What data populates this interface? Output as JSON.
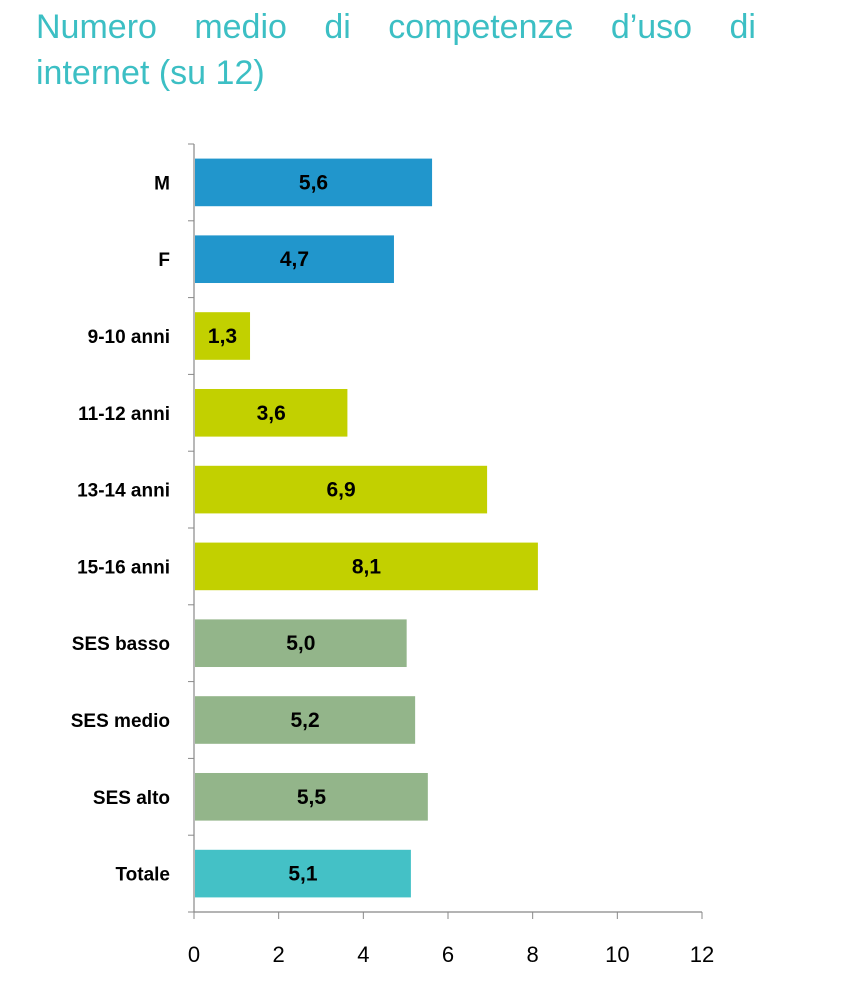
{
  "title_words": [
    "Numero",
    "medio",
    "di",
    "competenze",
    "d’uso",
    "di"
  ],
  "title_line2": "internet (su 12)",
  "chart_data": {
    "type": "bar",
    "orientation": "horizontal",
    "title": "Numero medio di competenze d’uso di internet (su 12)",
    "categories": [
      "M",
      "F",
      "9-10 anni",
      "11-12 anni",
      "13-14 anni",
      "15-16 anni",
      "SES basso",
      "SES medio",
      "SES alto",
      "Totale"
    ],
    "values": [
      5.6,
      4.7,
      1.3,
      3.6,
      6.9,
      8.1,
      5.0,
      5.2,
      5.5,
      5.1
    ],
    "value_labels": [
      "5,6",
      "4,7",
      "1,3",
      "3,6",
      "6,9",
      "8,1",
      "5,0",
      "5,2",
      "5,5",
      "5,1"
    ],
    "colors": [
      "#2196cc",
      "#2196cc",
      "#c2d000",
      "#c2d000",
      "#c2d000",
      "#c2d000",
      "#93b58a",
      "#93b58a",
      "#93b58a",
      "#44c1c6"
    ],
    "xlim": [
      0,
      12
    ],
    "xticks": [
      0,
      2,
      4,
      6,
      8,
      10,
      12
    ],
    "xlabel": "",
    "ylabel": "",
    "grid": false,
    "legend": "none"
  }
}
